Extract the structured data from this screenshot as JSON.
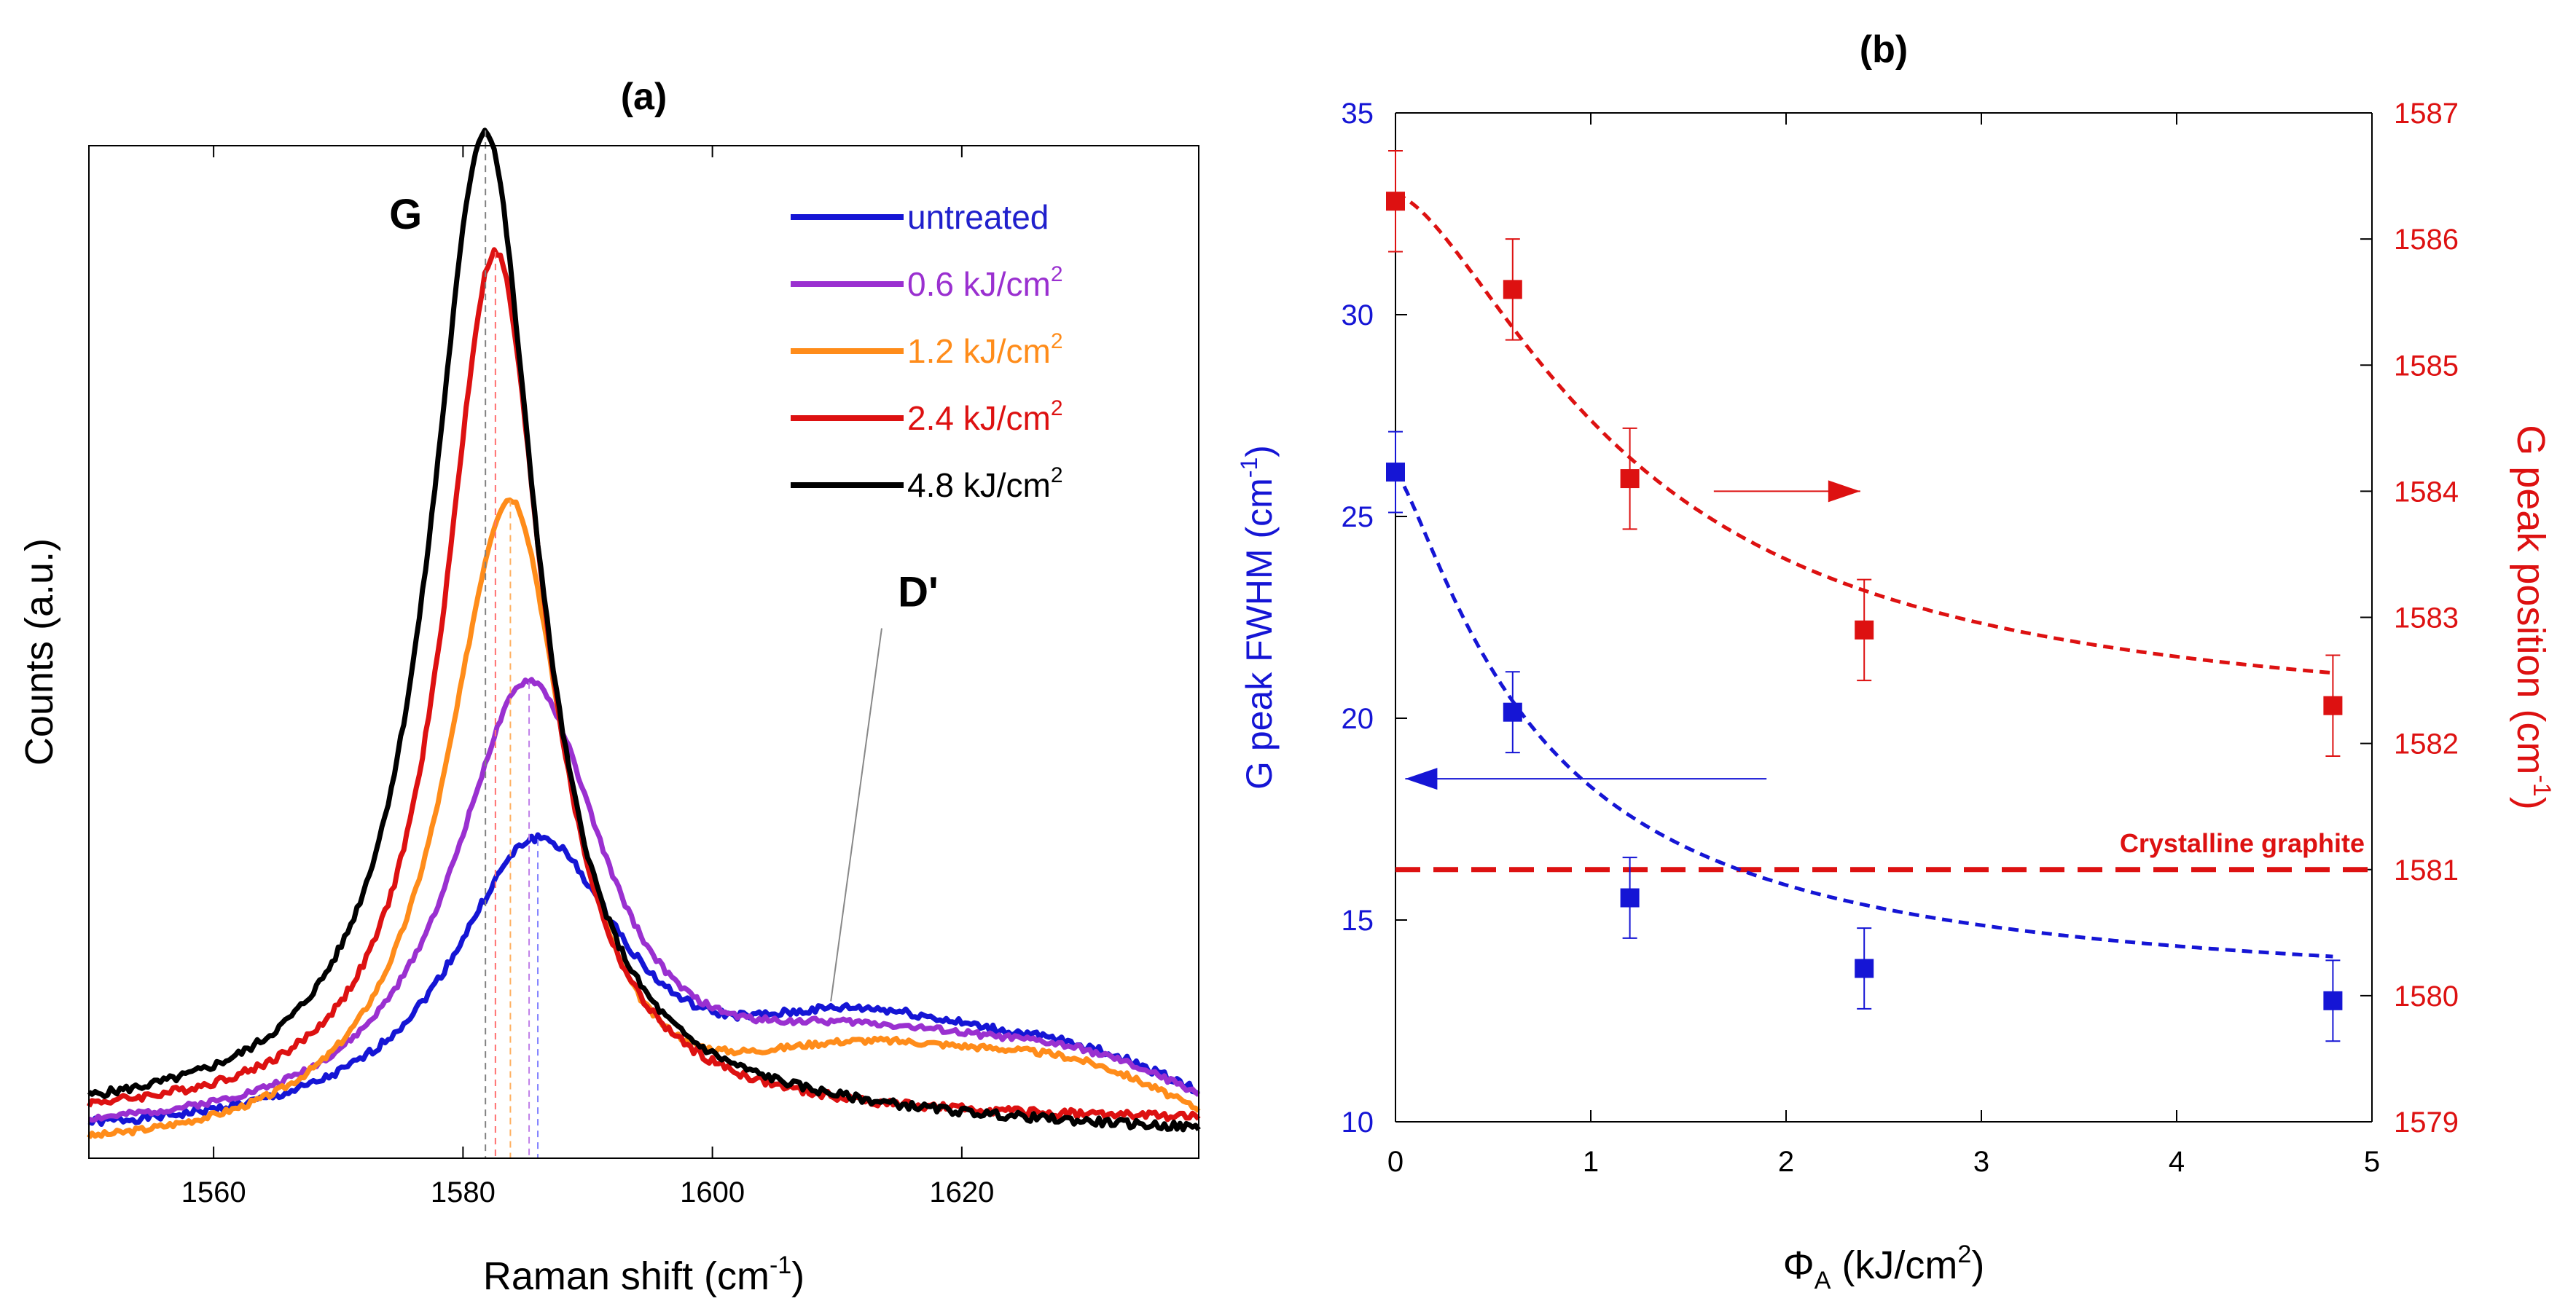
{
  "chart_data": [
    {
      "panel": "a",
      "type": "line",
      "title": "(a)",
      "xlabel": "Raman shift (cm",
      "xlabel_sup": "-1",
      "xlabel_end": ")",
      "ylabel": "Counts (a.u.)",
      "xlim": [
        1550,
        1639
      ],
      "ylim": [
        0,
        1.0
      ],
      "xticks": [
        1560,
        1580,
        1600,
        1620
      ],
      "grid": false,
      "legend_position": "top-right",
      "annotations": [
        {
          "text": "G",
          "x": 1575.4,
          "y": 0.918
        },
        {
          "text": "D'",
          "x": 1616.5,
          "y": 0.545,
          "pointer_to": [
            1609.5,
            0.155
          ]
        }
      ],
      "peak_lines": [
        {
          "series": "untreated",
          "x": 1586.0,
          "color": "#8080ff"
        },
        {
          "series": "0.6 kJ/cm2",
          "x": 1585.3,
          "color": "#c080e8"
        },
        {
          "series": "1.2 kJ/cm2",
          "x": 1583.8,
          "color": "#ffb060"
        },
        {
          "series": "2.4 kJ/cm2",
          "x": 1582.6,
          "color": "#ff7070"
        },
        {
          "series": "4.8 kJ/cm2",
          "x": 1581.8,
          "color": "#808080"
        }
      ],
      "series": [
        {
          "name": "untreated",
          "label": "untreated",
          "label_sup": "",
          "color": "#1515d5",
          "text_color": "#2020cc",
          "peak_x": 1586.0,
          "peak_y": 0.295,
          "wl": 8.5,
          "wr": 9.0,
          "base": 0.02,
          "dp_center": 1612,
          "dp_amp": 0.09,
          "dp_width": 13,
          "tail_center": 1630,
          "tail_amp": 0.065,
          "tail_width": 12,
          "edge_right": 0.0,
          "noise": 0.004,
          "seed": 1
        },
        {
          "name": "0.6 kJ/cm2",
          "label": "0.6 kJ/cm",
          "label_sup": "2",
          "color": "#9a30d0",
          "text_color": "#9a30d0",
          "peak_x": 1585.3,
          "peak_y": 0.45,
          "wl": 7.5,
          "wr": 7.5,
          "base": 0.02,
          "dp_center": 1612,
          "dp_amp": 0.075,
          "dp_width": 14,
          "tail_center": 1630,
          "tail_amp": 0.06,
          "tail_width": 12,
          "edge_right": 0.0,
          "noise": 0.003,
          "seed": 2
        },
        {
          "name": "1.2 kJ/cm2",
          "label": "1.2 kJ/cm",
          "label_sup": "2",
          "color": "#ff8c1a",
          "text_color": "#ff8c1a",
          "peak_x": 1583.8,
          "peak_y": 0.65,
          "wl": 6.3,
          "wr": 5.5,
          "base": 0.0,
          "dp_center": 1612,
          "dp_amp": 0.085,
          "dp_width": 14,
          "tail_center": 1630,
          "tail_amp": 0.07,
          "tail_width": 12,
          "edge_right": 0.0,
          "noise": 0.003,
          "seed": 3
        },
        {
          "name": "2.4 kJ/cm2",
          "label": "2.4 kJ/cm",
          "label_sup": "2",
          "color": "#dd1111",
          "text_color": "#dd1111",
          "peak_x": 1582.6,
          "peak_y": 0.86,
          "wl": 5.0,
          "wr": 4.8,
          "base": 0.035,
          "dp_center": 1612,
          "dp_amp": 0.0,
          "dp_width": 14,
          "tail_center": 1630,
          "tail_amp": 0.0,
          "tail_width": 12,
          "edge_right": 0.0,
          "noise": 0.004,
          "seed": 4
        },
        {
          "name": "4.8 kJ/cm2",
          "label": "4.8 kJ/cm",
          "label_sup": "2",
          "color": "#000000",
          "text_color": "#000000",
          "peak_x": 1581.8,
          "peak_y": 0.98,
          "wl": 5.4,
          "wr": 5.0,
          "base": 0.035,
          "dp_center": 1612,
          "dp_amp": 0.0,
          "dp_width": 14,
          "tail_center": 1630,
          "tail_amp": 0.0,
          "tail_width": 12,
          "edge_right": -0.012,
          "noise": 0.004,
          "seed": 5
        }
      ]
    },
    {
      "panel": "b",
      "type": "scatter",
      "title": "(b)",
      "xlabel": "Φ",
      "xlabel_sub": "A",
      "xlabel_end": " (kJ/cm",
      "xlabel_sup": "2",
      "xlabel_close": ")",
      "xlim": [
        0,
        5
      ],
      "xticks": [
        0,
        1,
        2,
        3,
        4,
        5
      ],
      "y_left": {
        "label": "G peak  FWHM (cm",
        "label_sup": "-1",
        "label_end": ")",
        "color": "#1515d5",
        "lim": [
          10,
          35
        ],
        "ticks": [
          10,
          15,
          20,
          25,
          30,
          35
        ]
      },
      "y_right": {
        "label": "G peak position (cm",
        "label_sup": "-1",
        "label_end": ")",
        "color": "#dd1111",
        "lim": [
          1579,
          1587
        ],
        "ticks": [
          1579,
          1580,
          1581,
          1582,
          1583,
          1584,
          1585,
          1586,
          1587
        ]
      },
      "grid": false,
      "series": [
        {
          "name": "G peak FWHM",
          "axis": "left",
          "color": "#1515d5",
          "marker": "square",
          "x": [
            0,
            0.6,
            1.2,
            2.4,
            4.8
          ],
          "y": [
            26.1,
            20.15,
            15.55,
            13.8,
            13.0
          ],
          "err": [
            1.0,
            1.0,
            1.0,
            1.0,
            1.0
          ],
          "fit": {
            "a": 13.0,
            "b": 13.1,
            "c": 0.74,
            "d": 1.28
          }
        },
        {
          "name": "G peak position",
          "axis": "right",
          "color": "#dd1111",
          "marker": "square",
          "x": [
            0,
            0.6,
            1.2,
            2.4,
            4.8
          ],
          "y": [
            1586.3,
            1585.6,
            1584.1,
            1582.9,
            1582.3
          ],
          "err": [
            0.4,
            0.4,
            0.4,
            0.4,
            0.4
          ],
          "fit": {
            "a": 1582.1,
            "b": 4.25,
            "c": 1.23,
            "d": 1.55
          }
        }
      ],
      "reference_line": {
        "label": "Crystalline graphite",
        "value": 1581,
        "axis": "right",
        "color": "#dd1111"
      },
      "arrows": [
        {
          "direction": "left",
          "axis": "left",
          "y": 18.5,
          "x_from": 1.9,
          "x_to": 0.05,
          "color": "#1515d5"
        },
        {
          "direction": "right",
          "axis": "right",
          "y": 1584.0,
          "x_from": 1.63,
          "x_to": 2.38,
          "color": "#dd1111"
        }
      ]
    }
  ]
}
